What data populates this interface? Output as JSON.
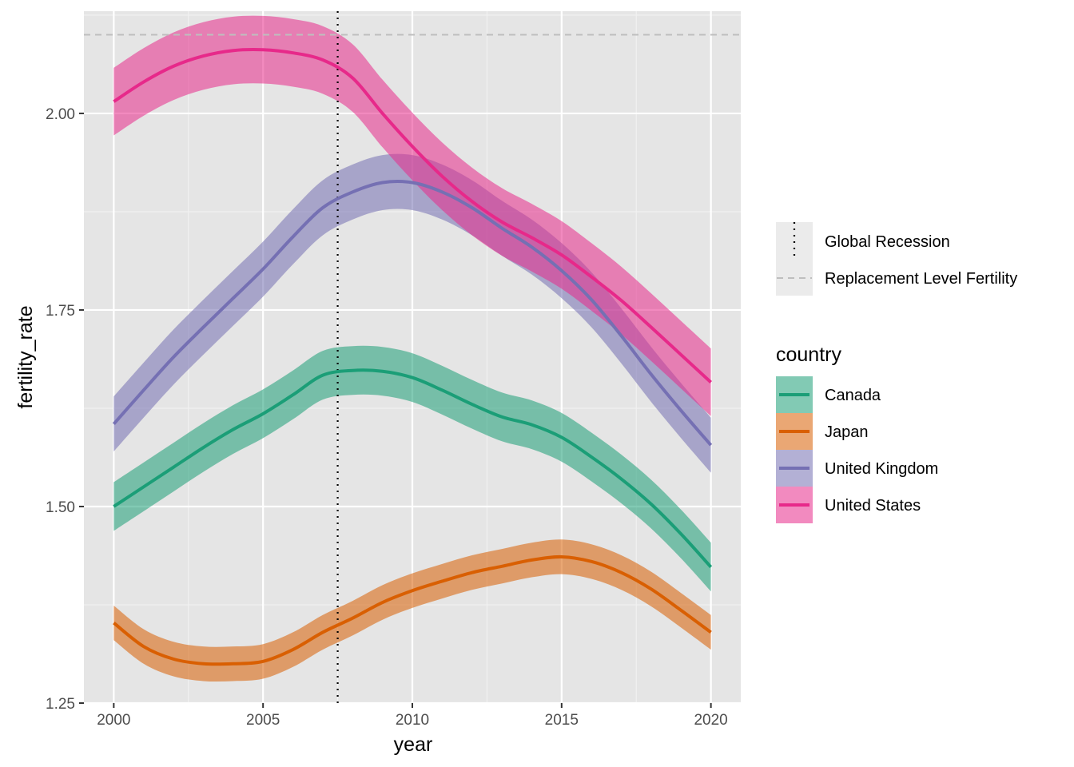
{
  "chart_data": {
    "type": "line",
    "xlabel": "year",
    "ylabel": "fertility_rate",
    "xlim": [
      1999,
      2021
    ],
    "ylim": [
      1.25,
      2.13
    ],
    "x_ticks": [
      "2000",
      "2005",
      "2010",
      "2015",
      "2020"
    ],
    "y_ticks": [
      "1.25",
      "1.50",
      "1.75",
      "2.00"
    ],
    "x": [
      2000,
      2001,
      2002,
      2003,
      2004,
      2005,
      2006,
      2007,
      2008,
      2009,
      2010,
      2011,
      2012,
      2013,
      2014,
      2015,
      2016,
      2017,
      2018,
      2019,
      2020
    ],
    "grid": true,
    "background": "#e5e5e5",
    "legend_position": "right",
    "legend_title": "country",
    "series": [
      {
        "name": "Canada",
        "color": "#1b9e77",
        "values": [
          1.5,
          1.525,
          1.55,
          1.575,
          1.598,
          1.618,
          1.642,
          1.667,
          1.673,
          1.672,
          1.664,
          1.648,
          1.63,
          1.614,
          1.604,
          1.588,
          1.563,
          1.535,
          1.503,
          1.465,
          1.423
        ],
        "ci": 0.031
      },
      {
        "name": "Japan",
        "color": "#d95f02",
        "values": [
          1.352,
          1.322,
          1.306,
          1.3,
          1.3,
          1.303,
          1.318,
          1.34,
          1.358,
          1.378,
          1.393,
          1.405,
          1.416,
          1.424,
          1.432,
          1.436,
          1.43,
          1.416,
          1.395,
          1.368,
          1.34
        ],
        "ci": 0.022
      },
      {
        "name": "United Kingdom",
        "color": "#7570b3",
        "values": [
          1.605,
          1.648,
          1.69,
          1.728,
          1.765,
          1.802,
          1.843,
          1.88,
          1.9,
          1.912,
          1.912,
          1.9,
          1.88,
          1.854,
          1.83,
          1.8,
          1.763,
          1.717,
          1.668,
          1.622,
          1.578
        ],
        "ci": 0.035
      },
      {
        "name": "United States",
        "color": "#e7298a",
        "values": [
          2.015,
          2.04,
          2.06,
          2.073,
          2.08,
          2.081,
          2.077,
          2.068,
          2.045,
          2.0,
          1.958,
          1.92,
          1.888,
          1.862,
          1.842,
          1.82,
          1.792,
          1.762,
          1.728,
          1.693,
          1.658
        ],
        "ci": 0.043
      }
    ],
    "reference_lines": [
      {
        "name": "Global Recession",
        "orientation": "vertical",
        "value": 2007.5,
        "style": "dotted",
        "color": "#000000"
      },
      {
        "name": "Replacement Level Fertility",
        "orientation": "horizontal",
        "value": 2.1,
        "style": "dashed",
        "color": "#bebebe"
      }
    ]
  }
}
